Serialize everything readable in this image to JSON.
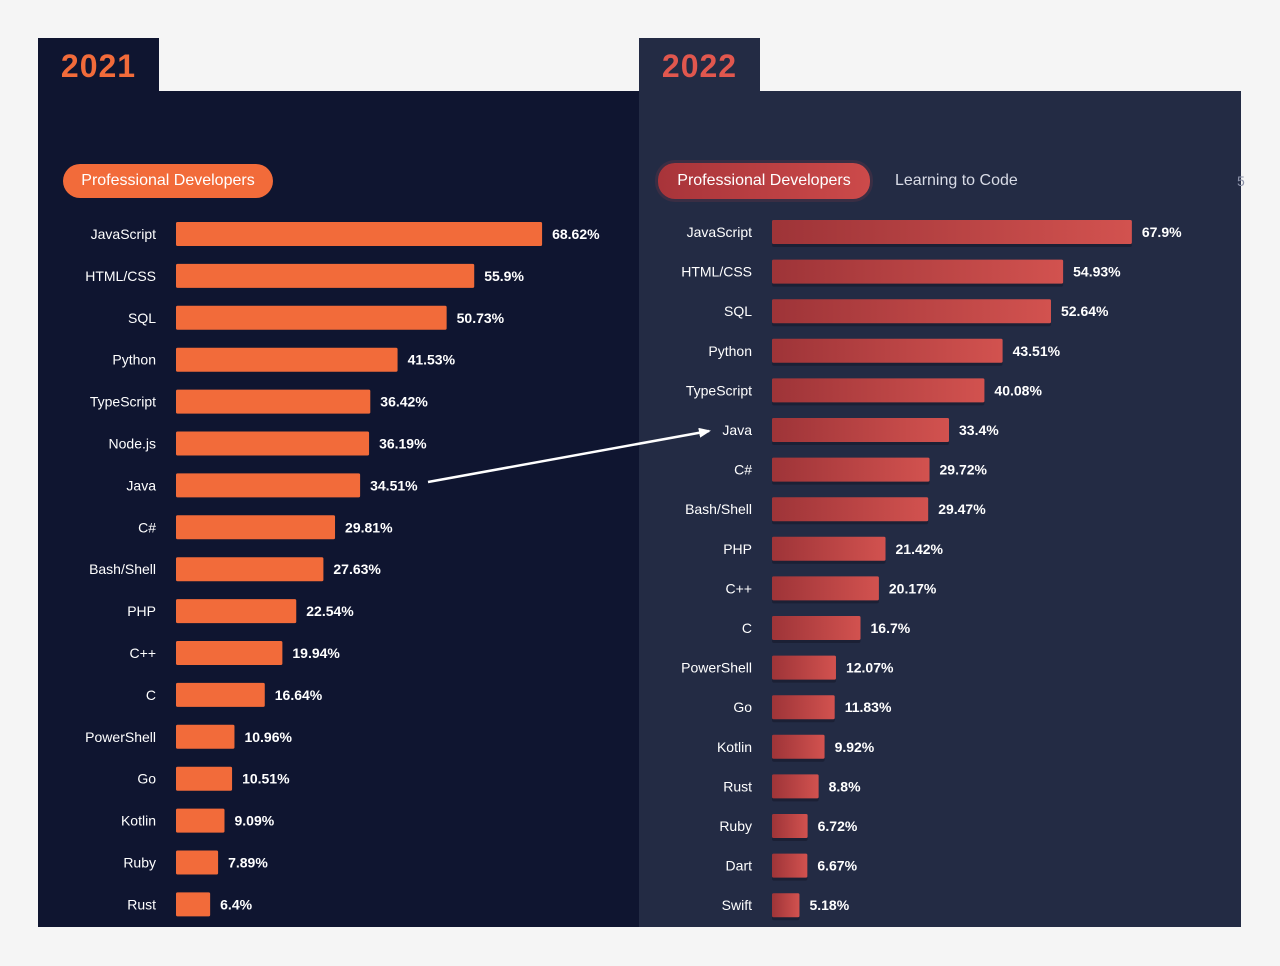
{
  "colors": {
    "bar_2021": "#f26b3a",
    "bar_2022_start": "#9e3438",
    "bar_2022_end": "#d2524f",
    "arrow": "#ffffff"
  },
  "panel_2021": {
    "year": "2021",
    "active_tab": "Professional Developers"
  },
  "panel_2022": {
    "year": "2022",
    "active_tab": "Professional Developers",
    "second_tab": "Learning to Code",
    "more_tab_glimpse": "5"
  },
  "chart_data": [
    {
      "type": "bar",
      "orientation": "horizontal",
      "title": "2021",
      "subtitle": "Professional Developers",
      "categories": [
        "JavaScript",
        "HTML/CSS",
        "SQL",
        "Python",
        "TypeScript",
        "Node.js",
        "Java",
        "C#",
        "Bash/Shell",
        "PHP",
        "C++",
        "C",
        "PowerShell",
        "Go",
        "Kotlin",
        "Ruby",
        "Rust"
      ],
      "values": [
        68.62,
        55.9,
        50.73,
        41.53,
        36.42,
        36.19,
        34.51,
        29.81,
        27.63,
        22.54,
        19.94,
        16.64,
        10.96,
        10.51,
        9.09,
        7.89,
        6.4
      ],
      "value_labels": [
        "68.62%",
        "55.9%",
        "50.73%",
        "41.53%",
        "36.42%",
        "36.19%",
        "34.51%",
        "29.81%",
        "27.63%",
        "22.54%",
        "19.94%",
        "16.64%",
        "10.96%",
        "10.51%",
        "9.09%",
        "7.89%",
        "6.4%"
      ],
      "xlim": [
        0,
        100
      ],
      "grid": false
    },
    {
      "type": "bar",
      "orientation": "horizontal",
      "title": "2022",
      "subtitle": "Professional Developers",
      "categories": [
        "JavaScript",
        "HTML/CSS",
        "SQL",
        "Python",
        "TypeScript",
        "Java",
        "C#",
        "Bash/Shell",
        "PHP",
        "C++",
        "C",
        "PowerShell",
        "Go",
        "Kotlin",
        "Rust",
        "Ruby",
        "Dart",
        "Swift"
      ],
      "values": [
        67.9,
        54.93,
        52.64,
        43.51,
        40.08,
        33.4,
        29.72,
        29.47,
        21.42,
        20.17,
        16.7,
        12.07,
        11.83,
        9.92,
        8.8,
        6.72,
        6.67,
        5.18
      ],
      "value_labels": [
        "67.9%",
        "54.93%",
        "52.64%",
        "43.51%",
        "40.08%",
        "33.4%",
        "29.72%",
        "29.47%",
        "21.42%",
        "20.17%",
        "16.7%",
        "12.07%",
        "11.83%",
        "9.92%",
        "8.8%",
        "6.72%",
        "6.67%",
        "5.18%"
      ],
      "xlim": [
        0,
        100
      ],
      "grid": false
    }
  ],
  "annotation": {
    "type": "arrow",
    "from": "Java (2021, 34.51%)",
    "to": "Java (2022)"
  }
}
